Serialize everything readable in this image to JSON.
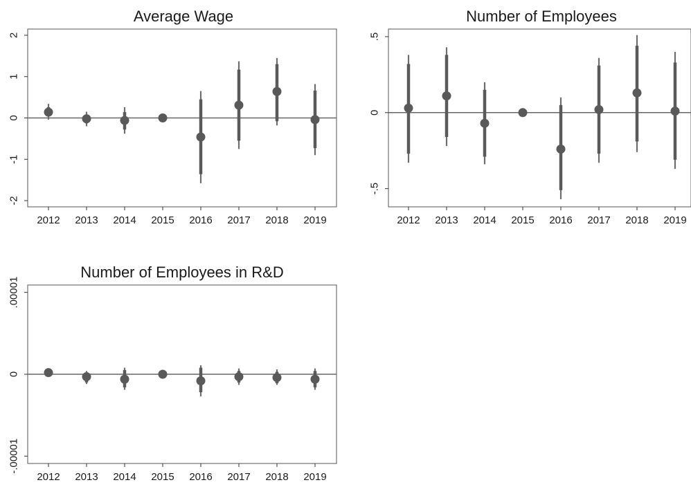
{
  "chart_data": [
    {
      "type": "scatter",
      "title": "Average Wage",
      "xlabel": "",
      "ylabel": "",
      "categories": [
        "2012",
        "2013",
        "2014",
        "2015",
        "2016",
        "2017",
        "2018",
        "2019"
      ],
      "yticks": [
        -2,
        -1,
        0,
        1,
        2
      ],
      "ytick_labels": [
        "-2",
        "-1",
        "0",
        "1",
        "2"
      ],
      "ylim": [
        -2.15,
        2.15
      ],
      "reference_line": 0,
      "grid": false,
      "series": [
        {
          "estimate": [
            0.14,
            -0.02,
            -0.06,
            0.0,
            -0.46,
            0.31,
            0.64,
            -0.04
          ],
          "ci90": [
            [
              0.04,
              0.26
            ],
            [
              -0.13,
              0.08
            ],
            [
              -0.28,
              0.14
            ],
            [
              0.0,
              0.0
            ],
            [
              -1.36,
              0.45
            ],
            [
              -0.55,
              1.17
            ],
            [
              -0.08,
              1.3
            ],
            [
              -0.73,
              0.66
            ]
          ],
          "ci95": [
            [
              -0.04,
              0.34
            ],
            [
              -0.2,
              0.15
            ],
            [
              -0.38,
              0.26
            ],
            [
              0.0,
              0.0
            ],
            [
              -1.58,
              0.65
            ],
            [
              -0.75,
              1.37
            ],
            [
              -0.18,
              1.45
            ],
            [
              -0.9,
              0.82
            ]
          ]
        }
      ]
    },
    {
      "type": "scatter",
      "title": "Number of Employees",
      "xlabel": "",
      "ylabel": "",
      "categories": [
        "2012",
        "2013",
        "2014",
        "2015",
        "2016",
        "2017",
        "2018",
        "2019"
      ],
      "yticks": [
        -0.5,
        0,
        0.5
      ],
      "ytick_labels": [
        "-.5",
        "0",
        ".5"
      ],
      "ylim": [
        -0.62,
        0.55
      ],
      "reference_line": 0,
      "grid": false,
      "series": [
        {
          "estimate": [
            0.03,
            0.11,
            -0.07,
            0.0,
            -0.24,
            0.02,
            0.13,
            0.01
          ],
          "ci90": [
            [
              -0.27,
              0.32
            ],
            [
              -0.16,
              0.38
            ],
            [
              -0.29,
              0.15
            ],
            [
              0.0,
              0.0
            ],
            [
              -0.51,
              0.05
            ],
            [
              -0.27,
              0.31
            ],
            [
              -0.19,
              0.44
            ],
            [
              -0.31,
              0.33
            ]
          ],
          "ci95": [
            [
              -0.33,
              0.38
            ],
            [
              -0.22,
              0.43
            ],
            [
              -0.34,
              0.2
            ],
            [
              0.0,
              0.0
            ],
            [
              -0.57,
              0.1
            ],
            [
              -0.33,
              0.36
            ],
            [
              -0.26,
              0.51
            ],
            [
              -0.37,
              0.4
            ]
          ]
        }
      ]
    },
    {
      "type": "scatter",
      "title": "Number of Employees in R&D",
      "xlabel": "",
      "ylabel": "",
      "categories": [
        "2012",
        "2013",
        "2014",
        "2015",
        "2016",
        "2017",
        "2018",
        "2019"
      ],
      "yticks": [
        -1e-05,
        0,
        1e-05
      ],
      "ytick_labels": [
        "-.00001",
        "0",
        ".00001"
      ],
      "ylim": [
        -1.09e-05,
        1.09e-05
      ],
      "reference_line": 0,
      "grid": false,
      "series": [
        {
          "estimate": [
            2e-07,
            -3e-07,
            -6e-07,
            0.0,
            -8e-07,
            -3e-07,
            -4e-07,
            -6e-07
          ],
          "ci90": [
            [
              -1e-07,
              4e-07
            ],
            [
              -1e-06,
              2e-07
            ],
            [
              -1.6e-06,
              5e-07
            ],
            [
              0.0,
              0.0
            ],
            [
              -2.2e-06,
              8e-07
            ],
            [
              -1e-06,
              4e-07
            ],
            [
              -1.1e-06,
              3e-07
            ],
            [
              -1.6e-06,
              4e-07
            ]
          ],
          "ci95": [
            [
              -3e-07,
              6e-07
            ],
            [
              -1.2e-06,
              4e-07
            ],
            [
              -1.9e-06,
              8e-07
            ],
            [
              0.0,
              0.0
            ],
            [
              -2.7e-06,
              1.1e-06
            ],
            [
              -1.3e-06,
              7e-07
            ],
            [
              -1.3e-06,
              6e-07
            ],
            [
              -1.9e-06,
              7e-07
            ]
          ]
        }
      ]
    }
  ]
}
